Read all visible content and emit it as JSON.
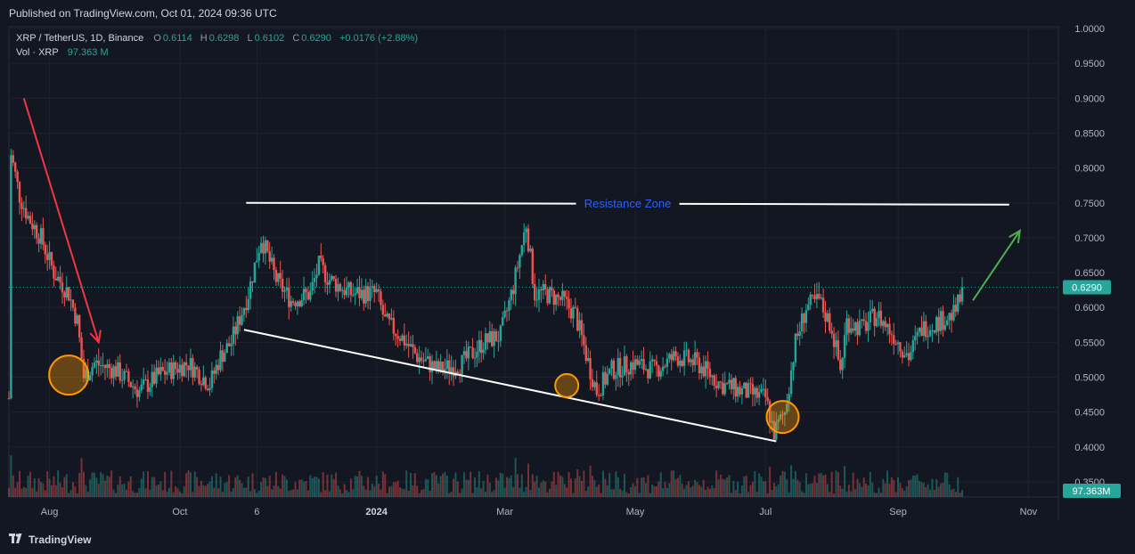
{
  "header": {
    "published": "Published on TradingView.com, Oct 01, 2024 09:36 UTC",
    "symbol": "XRP / TetherUS, 1D, Binance",
    "o_label": "O",
    "o_value": "0.6114",
    "h_label": "H",
    "h_value": "0.6298",
    "l_label": "L",
    "l_value": "0.6102",
    "c_label": "C",
    "c_value": "0.6290",
    "change": "+0.0176 (+2.88%)",
    "vol_label": "Vol · XRP",
    "vol_value": "97.363 M"
  },
  "footer": {
    "brand": "TradingView"
  },
  "colors": {
    "up": "#26a69a",
    "down": "#ef5350",
    "background": "#131722",
    "grid": "#1e222d",
    "annotation_red": "#f23645",
    "annotation_green": "#4caf50",
    "circle": "#ff9800",
    "resistance_text": "#2962ff"
  },
  "chart_data": {
    "type": "candlestick",
    "title": "XRP / TetherUS, 1D, Binance",
    "y_range": [
      0.33,
      1.0
    ],
    "y_ticks": [
      "1.0000",
      "0.9500",
      "0.9000",
      "0.8500",
      "0.8000",
      "0.7500",
      "0.7000",
      "0.6500",
      "0.6000",
      "0.5500",
      "0.5000",
      "0.4500",
      "0.4000",
      "0.3500"
    ],
    "x_ticks": [
      "Aug",
      "Oct",
      "6",
      "2024",
      "Mar",
      "May",
      "Jul",
      "Sep",
      "Nov"
    ],
    "x_range": [
      "2023-07-13",
      "2024-11-15"
    ],
    "x_tick_dates": [
      "2023-08-01",
      "2023-10-01",
      "2023-11-06",
      "2024-01-01",
      "2024-03-01",
      "2024-05-01",
      "2024-07-01",
      "2024-09-01",
      "2024-11-01"
    ],
    "last_price": "0.6290",
    "last_volume": "97.363M",
    "annotations": {
      "resistance_label": "Resistance Zone",
      "resistance_level": 0.75,
      "resistance_from": "2023-11-01",
      "resistance_to": "2024-10-23",
      "support_trendline": [
        [
          "2023-10-31",
          0.568
        ],
        [
          "2024-07-06",
          0.408
        ]
      ],
      "down_arrow": [
        [
          "2023-07-20",
          0.9
        ],
        [
          "2023-08-24",
          0.55
        ]
      ],
      "up_arrow": [
        [
          "2024-10-06",
          0.61
        ],
        [
          "2024-10-28",
          0.71
        ]
      ],
      "circles": [
        {
          "date": "2023-08-10",
          "price": 0.503,
          "size": "large"
        },
        {
          "date": "2024-03-30",
          "price": 0.488,
          "size": "small"
        },
        {
          "date": "2024-07-09",
          "price": 0.443,
          "size": "medium"
        }
      ]
    },
    "price_path": [
      [
        "2023-07-13",
        0.47
      ],
      [
        "2023-07-14",
        0.82
      ],
      [
        "2023-07-18",
        0.76
      ],
      [
        "2023-07-22",
        0.73
      ],
      [
        "2023-07-28",
        0.7
      ],
      [
        "2023-08-03",
        0.65
      ],
      [
        "2023-08-10",
        0.62
      ],
      [
        "2023-08-14",
        0.58
      ],
      [
        "2023-08-17",
        0.5
      ],
      [
        "2023-08-22",
        0.52
      ],
      [
        "2023-09-01",
        0.51
      ],
      [
        "2023-09-12",
        0.48
      ],
      [
        "2023-09-22",
        0.505
      ],
      [
        "2023-10-05",
        0.52
      ],
      [
        "2023-10-15",
        0.49
      ],
      [
        "2023-10-20",
        0.53
      ],
      [
        "2023-10-25",
        0.55
      ],
      [
        "2023-11-02",
        0.62
      ],
      [
        "2023-11-08",
        0.7
      ],
      [
        "2023-11-15",
        0.64
      ],
      [
        "2023-11-22",
        0.61
      ],
      [
        "2023-12-01",
        0.62
      ],
      [
        "2023-12-05",
        0.66
      ],
      [
        "2023-12-10",
        0.64
      ],
      [
        "2023-12-20",
        0.62
      ],
      [
        "2024-01-01",
        0.62
      ],
      [
        "2024-01-05",
        0.58
      ],
      [
        "2024-01-12",
        0.56
      ],
      [
        "2024-01-20",
        0.53
      ],
      [
        "2024-01-30",
        0.51
      ],
      [
        "2024-02-10",
        0.52
      ],
      [
        "2024-02-20",
        0.55
      ],
      [
        "2024-02-28",
        0.56
      ],
      [
        "2024-03-05",
        0.63
      ],
      [
        "2024-03-11",
        0.72
      ],
      [
        "2024-03-15",
        0.62
      ],
      [
        "2024-03-20",
        0.62
      ],
      [
        "2024-03-28",
        0.61
      ],
      [
        "2024-04-03",
        0.59
      ],
      [
        "2024-04-10",
        0.51
      ],
      [
        "2024-04-13",
        0.48
      ],
      [
        "2024-04-20",
        0.51
      ],
      [
        "2024-04-30",
        0.52
      ],
      [
        "2024-05-10",
        0.51
      ],
      [
        "2024-05-20",
        0.53
      ],
      [
        "2024-05-30",
        0.52
      ],
      [
        "2024-06-10",
        0.49
      ],
      [
        "2024-06-20",
        0.48
      ],
      [
        "2024-07-01",
        0.47
      ],
      [
        "2024-07-05",
        0.42
      ],
      [
        "2024-07-10",
        0.45
      ],
      [
        "2024-07-15",
        0.55
      ],
      [
        "2024-07-20",
        0.6
      ],
      [
        "2024-07-26",
        0.61
      ],
      [
        "2024-08-01",
        0.57
      ],
      [
        "2024-08-05",
        0.51
      ],
      [
        "2024-08-08",
        0.58
      ],
      [
        "2024-08-15",
        0.57
      ],
      [
        "2024-08-22",
        0.59
      ],
      [
        "2024-08-30",
        0.56
      ],
      [
        "2024-09-06",
        0.53
      ],
      [
        "2024-09-12",
        0.57
      ],
      [
        "2024-09-20",
        0.58
      ],
      [
        "2024-09-27",
        0.59
      ],
      [
        "2024-09-30",
        0.611
      ],
      [
        "2024-10-01",
        0.629
      ]
    ]
  }
}
